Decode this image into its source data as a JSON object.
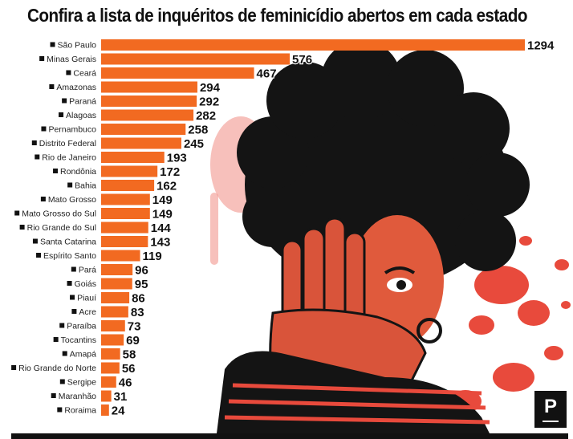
{
  "title": "Confira a lista de inquéritos de feminicídio abertos em cada estado",
  "logo_text": "P",
  "colors": {
    "bar": "#f26a21",
    "splatter": "#e03b30",
    "text": "#111111"
  },
  "chart_data": {
    "type": "bar",
    "orientation": "horizontal",
    "title": "Confira a lista de inquéritos de feminicídio abertos em cada estado",
    "categories": [
      "São Paulo",
      "Minas Gerais",
      "Ceará",
      "Amazonas",
      "Paraná",
      "Alagoas",
      "Pernambuco",
      "Distrito Federal",
      "Rio de Janeiro",
      "Rondônia",
      "Bahia",
      "Mato Grosso",
      "Mato Grosso do Sul",
      "Rio Grande do Sul",
      "Santa Catarina",
      "Espírito Santo",
      "Pará",
      "Goiás",
      "Piauí",
      "Acre",
      "Paraíba",
      "Tocantins",
      "Amapá",
      "Rio Grande do Norte",
      "Sergipe",
      "Maranhão",
      "Roraima"
    ],
    "values": [
      1294,
      576,
      467,
      294,
      292,
      282,
      258,
      245,
      193,
      172,
      162,
      149,
      149,
      144,
      143,
      119,
      96,
      95,
      86,
      83,
      73,
      69,
      58,
      56,
      46,
      31,
      24
    ],
    "xlim": [
      0,
      1294
    ],
    "grid": false,
    "legend": "none",
    "data_labels": true
  }
}
